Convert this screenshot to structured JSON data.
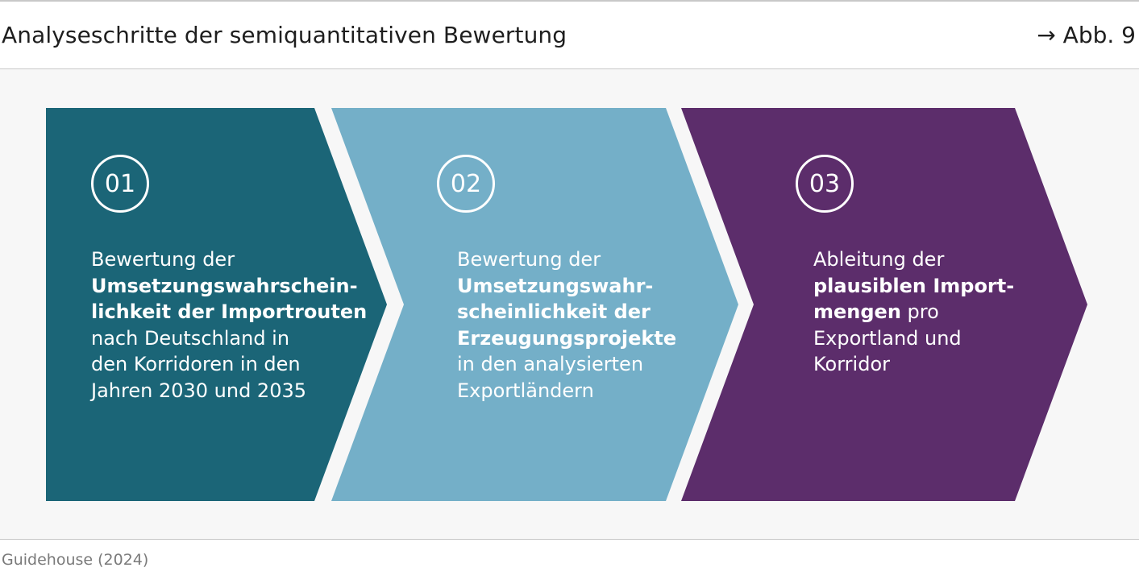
{
  "header": {
    "title": "Analyseschritte der semiquantitativen Bewertung",
    "figure_ref": "→ Abb. 9"
  },
  "colors": {
    "step1": "#1b6577",
    "step2": "#74afc8",
    "step3": "#5c2d6b",
    "background": "#f7f7f7"
  },
  "steps": [
    {
      "number": "01",
      "lines": [
        {
          "text": "Bewertung der",
          "bold": false
        },
        {
          "text": "Umsetzungswahrschein-",
          "bold": true
        },
        {
          "text": "lichkeit der Importrouten",
          "bold": true
        },
        {
          "text": "nach Deutschland in",
          "bold": false
        },
        {
          "text": "den Korridoren in den",
          "bold": false
        },
        {
          "text": "Jahren 2030 und 2035",
          "bold": false
        }
      ]
    },
    {
      "number": "02",
      "lines": [
        {
          "text": "Bewertung der",
          "bold": false
        },
        {
          "text": "Umsetzungswahr-",
          "bold": true
        },
        {
          "text": "scheinlichkeit der",
          "bold": true
        },
        {
          "text": "Erzeugungsprojekte",
          "bold": true
        },
        {
          "text": "in den analysierten",
          "bold": false
        },
        {
          "text": "Exportländern",
          "bold": false
        }
      ]
    },
    {
      "number": "03",
      "lines": [
        {
          "text": "Ableitung der",
          "bold": false
        },
        {
          "text": "plausiblen Import-",
          "bold": true
        },
        {
          "text": "mengen",
          "bold": true,
          "suffix": " pro"
        },
        {
          "text": "Exportland und",
          "bold": false
        },
        {
          "text": "Korridor",
          "bold": false
        }
      ]
    }
  ],
  "footer": {
    "source": "Guidehouse (2024)"
  }
}
